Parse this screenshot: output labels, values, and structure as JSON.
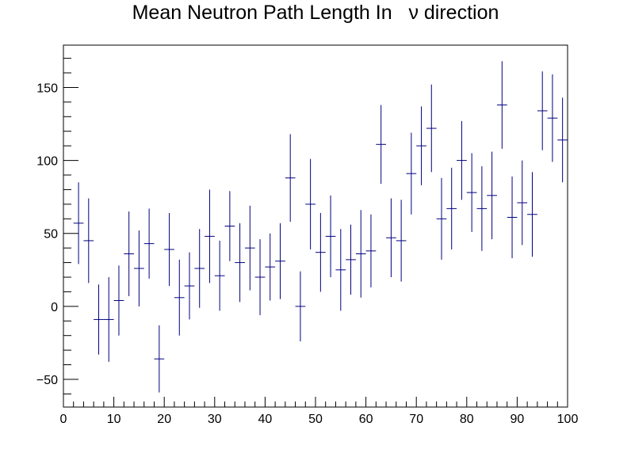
{
  "chart_data": {
    "type": "scatter",
    "title": "Mean Neutron Path Length In   ν direction",
    "xlabel": "",
    "ylabel": "",
    "xlim": [
      0,
      100
    ],
    "ylim": [
      -69,
      179
    ],
    "grid": false,
    "legend": "none",
    "marker_color": "#000080",
    "x_ticks": [
      0,
      10,
      20,
      30,
      40,
      50,
      60,
      70,
      80,
      90,
      100
    ],
    "x_tick_labels": [
      "0",
      "10",
      "20",
      "30",
      "40",
      "50",
      "60",
      "70",
      "80",
      "90",
      "100"
    ],
    "y_ticks": [
      -50,
      0,
      50,
      100,
      150
    ],
    "y_tick_labels": [
      "−50",
      "0",
      "50",
      "100",
      "150"
    ],
    "bin_width": 2,
    "series": [
      {
        "x": [
          3,
          5,
          7,
          9,
          11,
          13,
          15,
          17,
          19,
          21,
          23,
          25,
          27,
          29,
          31,
          33,
          35,
          37,
          39,
          41,
          43,
          45,
          47,
          49,
          51,
          53,
          55,
          57,
          59,
          61,
          63,
          65,
          67,
          69,
          71,
          73,
          75,
          77,
          79,
          81,
          83,
          85,
          87,
          89,
          91,
          93,
          95,
          97,
          99
        ],
        "y": [
          57,
          45,
          -9,
          -9,
          4,
          36,
          26,
          43,
          -36,
          39,
          6,
          14,
          26,
          48,
          21,
          55,
          30,
          40,
          20,
          27,
          31,
          88,
          0,
          70,
          37,
          48,
          25,
          32,
          36,
          38,
          111,
          47,
          45,
          91,
          110,
          122,
          60,
          67,
          100,
          78,
          67,
          76,
          138,
          61,
          71,
          63,
          134,
          129,
          114
        ],
        "yerr": [
          28,
          29,
          24,
          29,
          24,
          29,
          26,
          24,
          23,
          25,
          26,
          23,
          27,
          32,
          24,
          24,
          27,
          29,
          26,
          23,
          26,
          30,
          24,
          31,
          27,
          28,
          28,
          24,
          30,
          25,
          27,
          27,
          28,
          28,
          27,
          30,
          28,
          28,
          27,
          27,
          29,
          30,
          30,
          28,
          29,
          29,
          27,
          30,
          29
        ]
      }
    ]
  }
}
